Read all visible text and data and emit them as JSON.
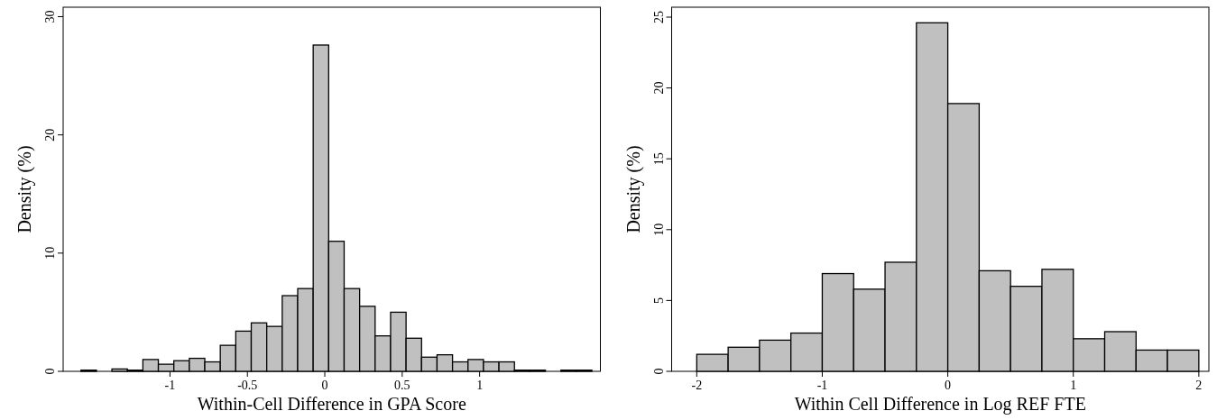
{
  "chart_data": [
    {
      "type": "histogram",
      "xlabel": "Within-Cell Difference in GPA Score",
      "ylabel": "Density (%)",
      "color": "#c0c0c0",
      "bins": [
        -1.575,
        -1.475,
        -1.375,
        -1.275,
        -1.175,
        -1.075,
        -0.975,
        -0.875,
        -0.775,
        -0.675,
        -0.575,
        -0.475,
        -0.375,
        -0.275,
        -0.175,
        -0.075,
        0.025,
        0.125,
        0.225,
        0.325,
        0.425,
        0.525,
        0.625,
        0.725,
        0.825,
        0.925,
        1.025,
        1.125,
        1.225,
        1.325,
        1.425,
        1.525,
        1.625,
        1.725
      ],
      "values": [
        0.1,
        0,
        0.2,
        0.1,
        1.0,
        0.6,
        0.9,
        1.1,
        0.8,
        2.2,
        3.4,
        4.1,
        3.8,
        6.4,
        7.0,
        27.6,
        11.0,
        7.0,
        5.5,
        3.0,
        5.0,
        2.8,
        1.2,
        1.4,
        0.8,
        1.0,
        0.8,
        0.8,
        0.1,
        0.1,
        0,
        0.1,
        0.1
      ],
      "xlim": [
        -1.69,
        1.78
      ],
      "xticks": [
        -1,
        -0.5,
        0,
        0.5,
        1
      ],
      "ylim": [
        0,
        30.8
      ],
      "yticks": [
        0,
        10,
        20,
        30
      ]
    },
    {
      "type": "histogram",
      "xlabel": "Within Cell Difference in Log REF FTE",
      "ylabel": "Density (%)",
      "color": "#c0c0c0",
      "bins": [
        -2,
        -1.75,
        -1.5,
        -1.25,
        -1,
        -0.75,
        -0.5,
        -0.25,
        0,
        0.25,
        0.5,
        0.75,
        1,
        1.25,
        1.5,
        1.75,
        2
      ],
      "values": [
        1.2,
        1.7,
        2.2,
        2.7,
        6.9,
        5.8,
        7.7,
        24.6,
        18.9,
        7.1,
        6.0,
        7.2,
        2.3,
        2.8,
        1.5,
        1.5
      ],
      "xlim": [
        -2.2,
        2.08
      ],
      "xticks": [
        -2,
        -1,
        0,
        1,
        2
      ],
      "ylim": [
        0,
        25.7
      ],
      "yticks": [
        0,
        5,
        10,
        15,
        20,
        25
      ]
    }
  ]
}
